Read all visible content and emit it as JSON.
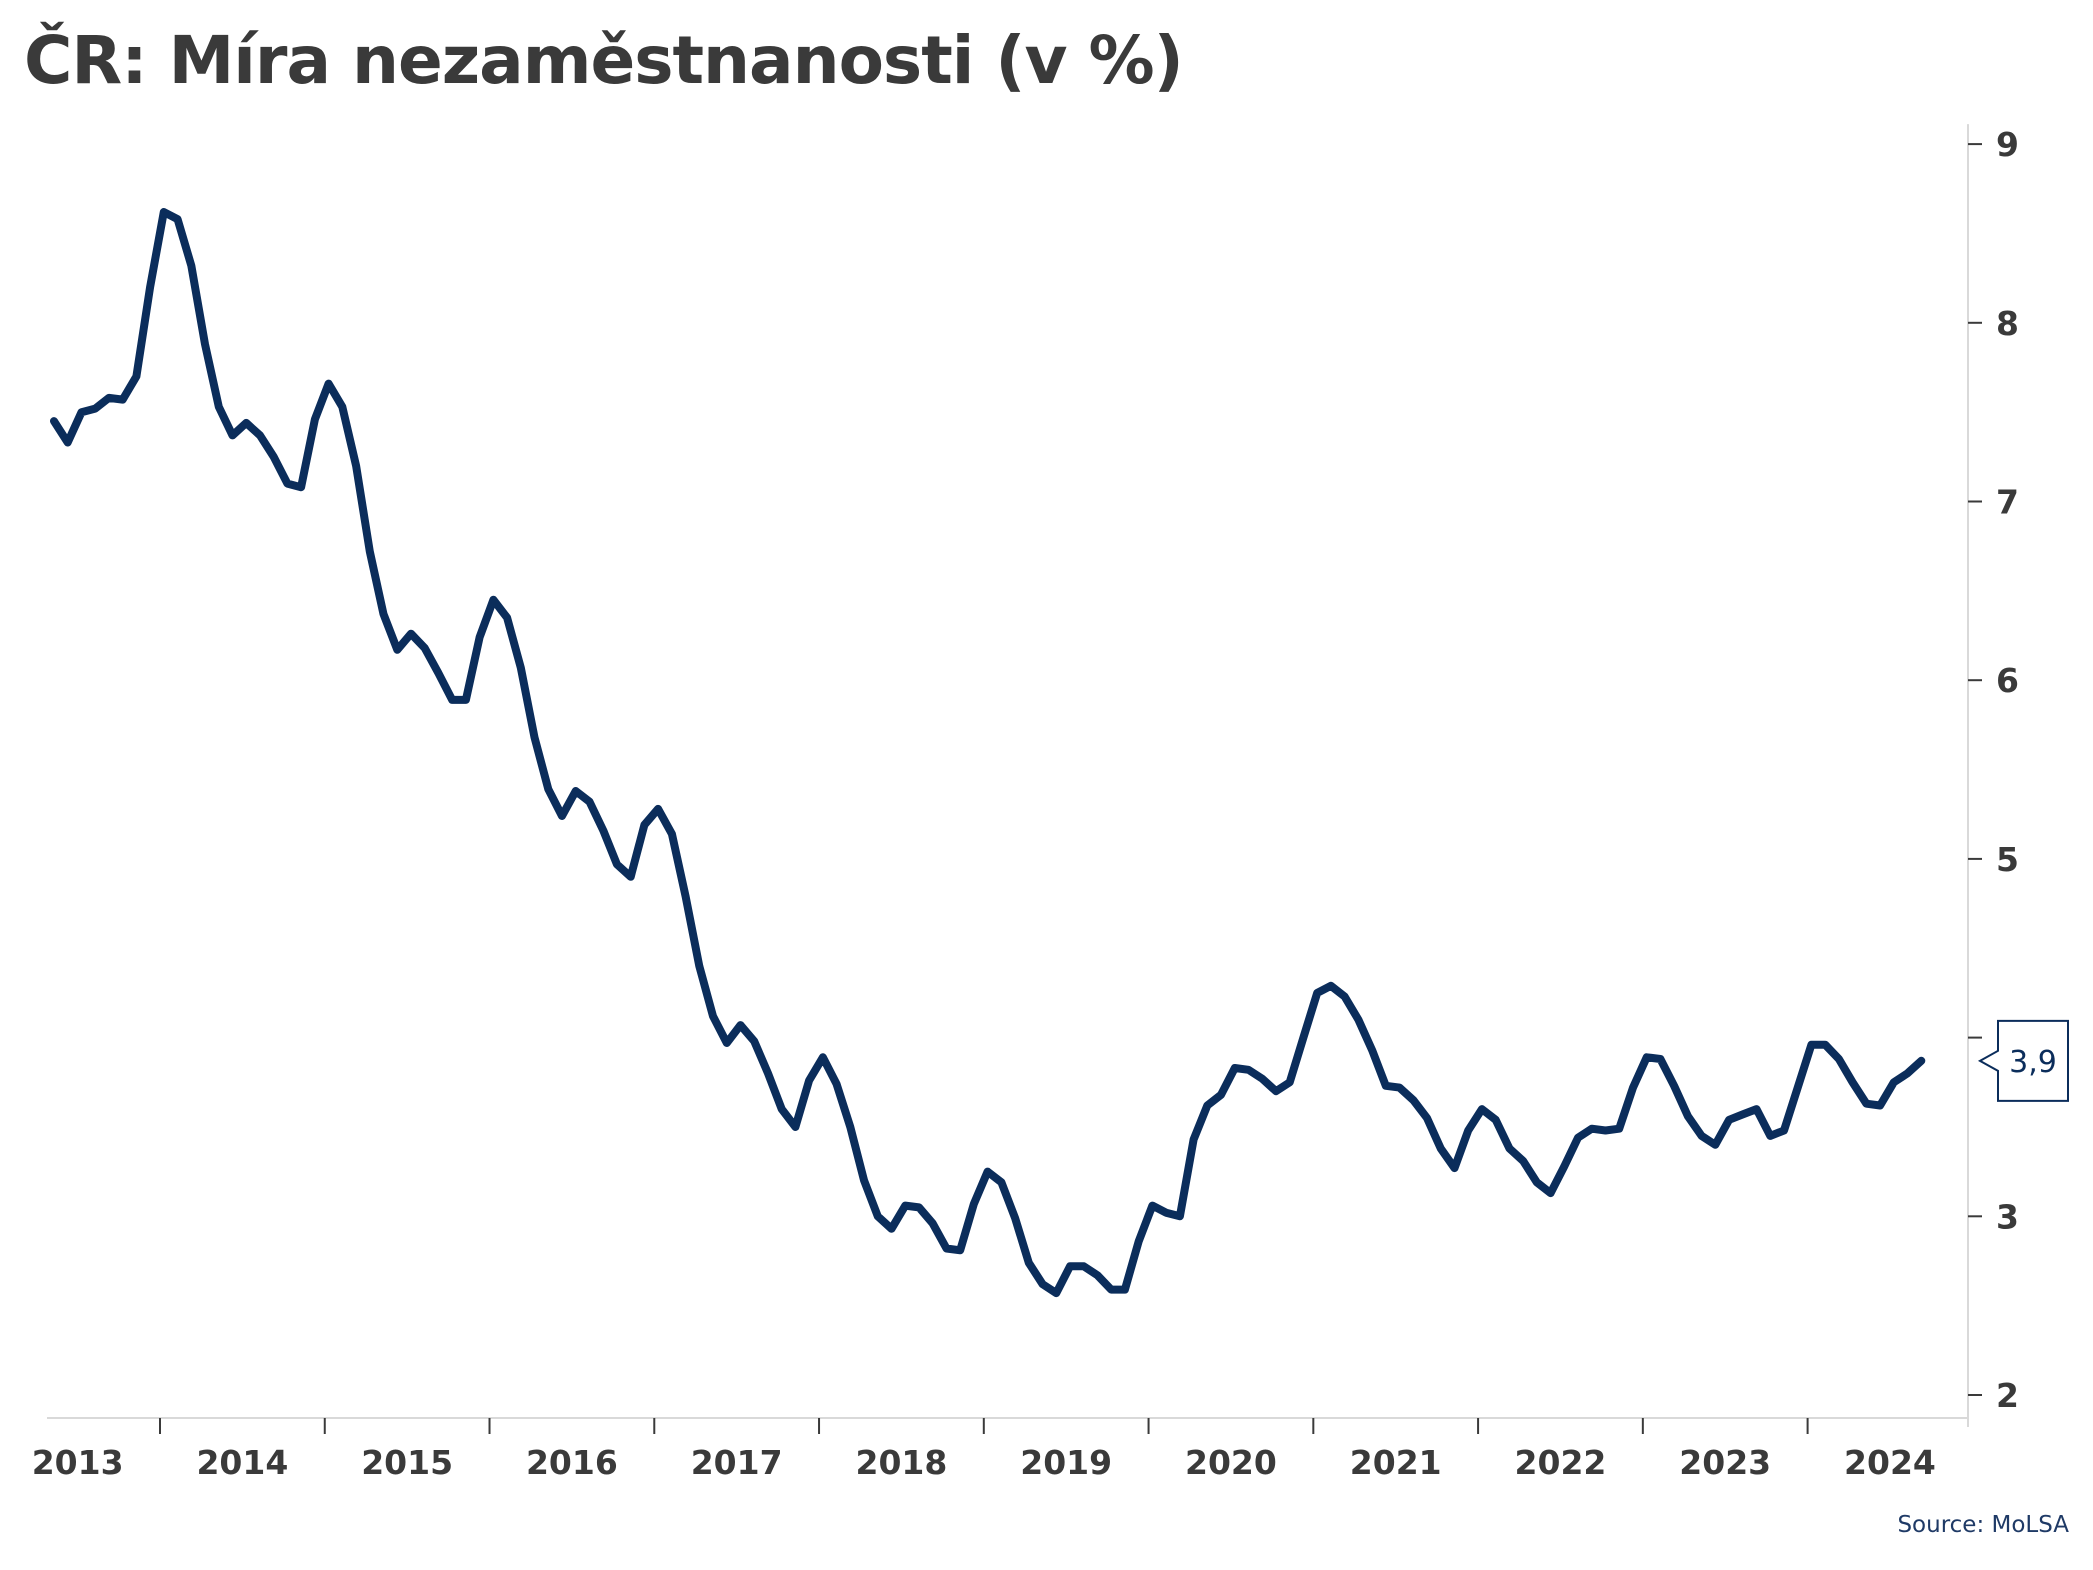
{
  "chart_data": {
    "type": "line",
    "title": "ČR: Míra nezaměstnanosti (v %)",
    "source": "Source: MoLSA",
    "xlabel": "",
    "ylabel": "",
    "x_start": "2013-01",
    "x_tick_labels": [
      "2013",
      "2014",
      "2015",
      "2016",
      "2017",
      "2018",
      "2019",
      "2020",
      "2021",
      "2022",
      "2023",
      "2024"
    ],
    "ylim": [
      2,
      9
    ],
    "y_ticks": [
      2,
      3,
      4,
      5,
      6,
      7,
      8,
      9
    ],
    "grid": false,
    "y_axis_side": "right",
    "line_color": "#0b2d5b",
    "last_value_label": "3,9",
    "series": [
      {
        "values": [
          7.45,
          7.33,
          7.5,
          7.52,
          7.58,
          7.57,
          7.7,
          8.2,
          8.62,
          8.58,
          8.32,
          7.88,
          7.53,
          7.37,
          7.44,
          7.37,
          7.25,
          7.1,
          7.08,
          7.46,
          7.66,
          7.53,
          7.2,
          6.72,
          6.37,
          6.17,
          6.26,
          6.18,
          6.04,
          5.89,
          5.89,
          6.24,
          6.45,
          6.35,
          6.07,
          5.68,
          5.39,
          5.24,
          5.38,
          5.32,
          5.16,
          4.97,
          4.9,
          5.19,
          5.28,
          5.14,
          4.79,
          4.4,
          4.12,
          3.97,
          4.07,
          3.98,
          3.8,
          3.6,
          3.5,
          3.76,
          3.89,
          3.74,
          3.5,
          3.2,
          3.0,
          2.93,
          3.06,
          3.05,
          2.96,
          2.82,
          2.81,
          3.07,
          3.25,
          3.19,
          2.99,
          2.74,
          2.62,
          2.57,
          2.72,
          2.72,
          2.67,
          2.59,
          2.59,
          2.86,
          3.06,
          3.02,
          3.0,
          3.43,
          3.62,
          3.68,
          3.83,
          3.82,
          3.77,
          3.7,
          3.75,
          4.0,
          4.25,
          4.29,
          4.23,
          4.1,
          3.93,
          3.73,
          3.72,
          3.65,
          3.55,
          3.38,
          3.27,
          3.48,
          3.6,
          3.54,
          3.38,
          3.31,
          3.19,
          3.13,
          3.28,
          3.44,
          3.49,
          3.48,
          3.49,
          3.72,
          3.89,
          3.88,
          3.73,
          3.56,
          3.45,
          3.4,
          3.54,
          3.57,
          3.6,
          3.45,
          3.48,
          3.72,
          3.96,
          3.96,
          3.88,
          3.75,
          3.63,
          3.62,
          3.75,
          3.8,
          3.87
        ]
      }
    ]
  }
}
